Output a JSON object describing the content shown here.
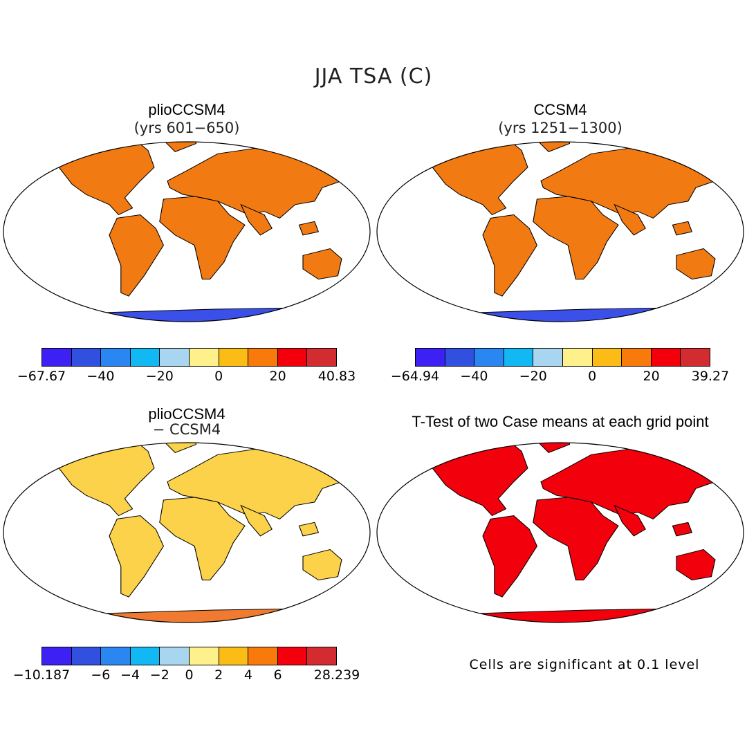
{
  "figure": {
    "title": "JJA TSA (C)",
    "note": "Cells are significant at 0.1 level"
  },
  "panels": [
    {
      "id": "plio",
      "title": "plioCCSM4",
      "subtitle": "(yrs 601−650)",
      "land_color": "#f27a12",
      "antarctica_color": "#3a50e8",
      "colorbar": {
        "colors": [
          "#3c20f4",
          "#3150e0",
          "#2a86f0",
          "#12b8f4",
          "#a8d6f0",
          "#fef08a",
          "#fcbc16",
          "#f87a0a",
          "#f4000c",
          "#d22c30"
        ],
        "labels": [
          "−67.67",
          "−40",
          "−20",
          "0",
          "20",
          "40.83"
        ]
      }
    },
    {
      "id": "ccsm4",
      "title": "CCSM4",
      "subtitle": "(yrs 1251−1300)",
      "land_color": "#f27a12",
      "antarctica_color": "#3a50e8",
      "colorbar": {
        "colors": [
          "#3c20f4",
          "#3150e0",
          "#2a86f0",
          "#12b8f4",
          "#a8d6f0",
          "#fef08a",
          "#fcbc16",
          "#f87a0a",
          "#f4000c",
          "#d22c30"
        ],
        "labels": [
          "−64.94",
          "−40",
          "−20",
          "0",
          "20",
          "39.27"
        ]
      }
    },
    {
      "id": "diff",
      "title": "plioCCSM4",
      "subtitle": "− CCSM4",
      "land_color": "#fcd24a",
      "antarctica_color": "#f07a30",
      "colorbar": {
        "colors": [
          "#3c20f4",
          "#3150e0",
          "#2a86f0",
          "#12b8f4",
          "#a8d6f0",
          "#fef08a",
          "#fcbc16",
          "#f87a0a",
          "#f4000c",
          "#d22c30"
        ],
        "labels": [
          "−10.187",
          "−6",
          "−4",
          "−2",
          "0",
          "2",
          "4",
          "6",
          "28.239"
        ]
      }
    },
    {
      "id": "ttest",
      "title": "T-Test of two Case means at each grid point",
      "subtitle": "",
      "land_color": "#f2000c",
      "antarctica_color": "#f2000c"
    }
  ]
}
